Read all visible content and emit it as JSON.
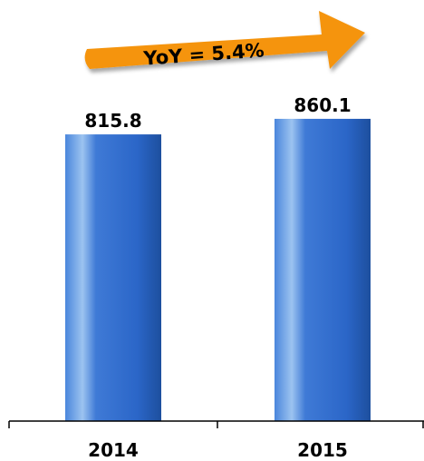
{
  "chart_data": {
    "type": "bar",
    "categories": [
      "2014",
      "2015"
    ],
    "values": [
      815.8,
      860.1
    ],
    "value_labels": [
      "815.8",
      "860.1"
    ],
    "title": "",
    "xlabel": "",
    "ylabel": "",
    "ylim": [
      0,
      940
    ],
    "grid": false,
    "legend": "none",
    "bar_color": "#2e6ad0",
    "annotation": {
      "text": "YoY = 5.4%",
      "color": "#f5940e",
      "shape": "arrow-up-right"
    }
  }
}
